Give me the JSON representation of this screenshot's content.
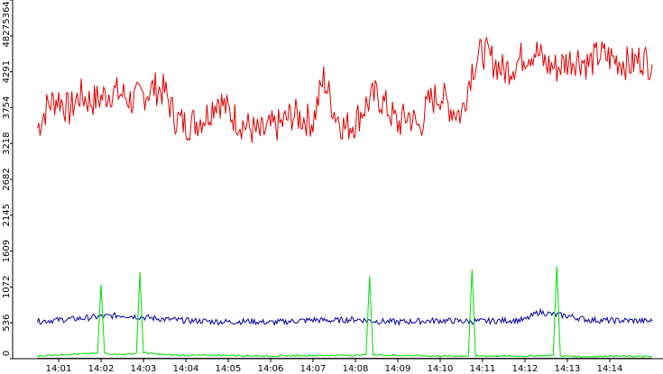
{
  "chart_data": {
    "type": "line",
    "title": "",
    "xlabel": "",
    "ylabel": "",
    "ylim": [
      0,
      5364
    ],
    "y_ticks": [
      "0",
      "536",
      "1072",
      "1609",
      "2145",
      "2682",
      "3218",
      "3754",
      "4291",
      "4827",
      "5364"
    ],
    "x_ticks": [
      "14:01",
      "14:02",
      "14:03",
      "14:04",
      "14:05",
      "14:06",
      "14:07",
      "14:08",
      "14:09",
      "14:10",
      "14:11",
      "14:12",
      "14:13",
      "14:14"
    ],
    "grid": false,
    "series": [
      {
        "color": "#e00000",
        "x": [
          "14:00:30",
          "14:00:45",
          "14:01:00",
          "14:01:15",
          "14:01:30",
          "14:01:45",
          "14:02:00",
          "14:02:15",
          "14:02:30",
          "14:02:45",
          "14:03:00",
          "14:03:15",
          "14:03:30",
          "14:03:45",
          "14:04:00",
          "14:04:15",
          "14:04:30",
          "14:04:45",
          "14:05:00",
          "14:05:15",
          "14:05:30",
          "14:05:45",
          "14:06:00",
          "14:06:15",
          "14:06:30",
          "14:06:45",
          "14:07:00",
          "14:07:15",
          "14:07:30",
          "14:07:45",
          "14:08:00",
          "14:08:15",
          "14:08:30",
          "14:08:45",
          "14:09:00",
          "14:09:15",
          "14:09:30",
          "14:09:45",
          "14:10:00",
          "14:10:15",
          "14:10:30",
          "14:10:45",
          "14:11:00",
          "14:11:15",
          "14:11:30",
          "14:11:45",
          "14:12:00",
          "14:12:15",
          "14:12:30",
          "14:12:45",
          "14:13:00",
          "14:13:15",
          "14:13:30",
          "14:13:45",
          "14:14:00",
          "14:14:15",
          "14:14:30",
          "14:14:45",
          "14:15:00"
        ],
        "values": [
          3450,
          3800,
          3900,
          3700,
          3950,
          3850,
          3900,
          4000,
          3950,
          3850,
          3950,
          4050,
          4000,
          3600,
          3500,
          3550,
          3650,
          3900,
          3700,
          3550,
          3450,
          3350,
          3450,
          3500,
          3650,
          3600,
          3550,
          4200,
          3700,
          3450,
          3550,
          3800,
          3950,
          3750,
          3500,
          3650,
          3450,
          3850,
          3950,
          3750,
          3650,
          4350,
          4600,
          4450,
          4300,
          4400,
          4550,
          4600,
          4400,
          4350,
          4450,
          4500,
          4400,
          4550,
          4500,
          4450,
          4400,
          4500,
          4400
        ]
      },
      {
        "color": "#0000a0",
        "x": [
          "14:00:30",
          "14:01:00",
          "14:01:30",
          "14:02:00",
          "14:02:30",
          "14:03:00",
          "14:03:30",
          "14:04:00",
          "14:04:30",
          "14:05:00",
          "14:05:30",
          "14:06:00",
          "14:06:30",
          "14:07:00",
          "14:07:30",
          "14:08:00",
          "14:08:30",
          "14:09:00",
          "14:09:30",
          "14:10:00",
          "14:10:30",
          "14:11:00",
          "14:11:30",
          "14:12:00",
          "14:12:20",
          "14:12:40",
          "14:13:00",
          "14:13:30",
          "14:14:00",
          "14:14:30",
          "14:15:00"
        ],
        "values": [
          560,
          580,
          600,
          630,
          650,
          620,
          590,
          570,
          560,
          550,
          560,
          540,
          560,
          580,
          570,
          590,
          560,
          550,
          560,
          570,
          560,
          560,
          570,
          580,
          700,
          660,
          640,
          580,
          570,
          570,
          560
        ]
      },
      {
        "color": "#00dd00",
        "x": [
          "14:00:30",
          "14:01:00",
          "14:01:30",
          "14:01:55",
          "14:02:00",
          "14:02:05",
          "14:02:30",
          "14:02:50",
          "14:02:55",
          "14:03:00",
          "14:03:30",
          "14:04:00",
          "14:05:00",
          "14:06:00",
          "14:07:00",
          "14:08:00",
          "14:08:15",
          "14:08:20",
          "14:08:25",
          "14:09:00",
          "14:10:00",
          "14:10:40",
          "14:10:45",
          "14:10:50",
          "14:11:30",
          "14:12:00",
          "14:12:40",
          "14:12:45",
          "14:12:50",
          "14:13:30",
          "14:14:00",
          "14:15:00"
        ],
        "values": [
          40,
          60,
          70,
          80,
          1110,
          80,
          60,
          80,
          1290,
          90,
          60,
          50,
          50,
          40,
          50,
          50,
          60,
          1230,
          60,
          50,
          40,
          40,
          1330,
          40,
          40,
          40,
          50,
          1380,
          40,
          30,
          40,
          30
        ]
      },
      {
        "color": "#000000",
        "x": [
          "14:00:30",
          "14:15:00"
        ],
        "values": [
          5,
          5
        ]
      }
    ]
  }
}
